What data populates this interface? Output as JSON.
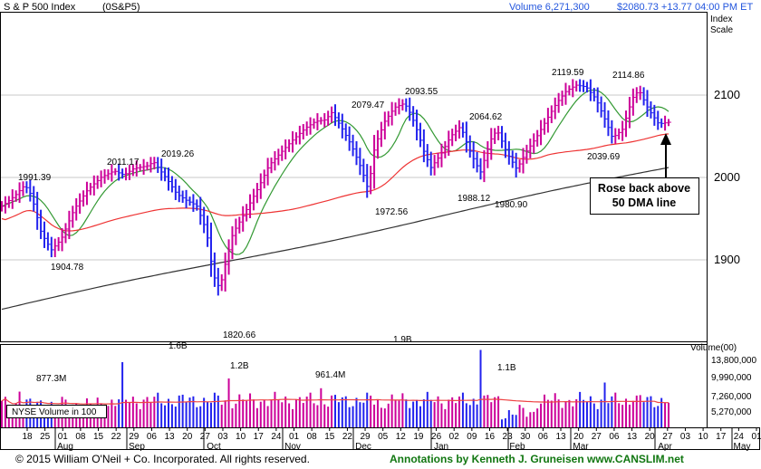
{
  "header": {
    "title": "S & P 500 Index",
    "symbol": "(0S&P5)",
    "volume": "Volume 6,271,300",
    "price": "$2080.73 +13.77",
    "time": "04:00 PM ET"
  },
  "index_scale": [
    "Index",
    "Scale"
  ],
  "price_axis": {
    "ticks": [
      "1900",
      "2000",
      "2100"
    ],
    "range": [
      1820,
      2135
    ]
  },
  "volume_axis": {
    "title": "Volume(00)",
    "ticks": [
      "5,270,000",
      "7,260,000",
      "9,990,000",
      "13,800,000"
    ]
  },
  "date_axis": {
    "days": [
      "18",
      "25",
      "01",
      "08",
      "15",
      "22",
      "29",
      "06",
      "13",
      "20",
      "27",
      "03",
      "10",
      "17",
      "24",
      "01",
      "08",
      "15",
      "22",
      "29",
      "05",
      "12",
      "19",
      "26",
      "02",
      "09",
      "16",
      "23",
      "30",
      "06",
      "13",
      "20",
      "27",
      "06",
      "13",
      "20",
      "27",
      "03",
      "10",
      "17",
      "24",
      "01"
    ],
    "months": [
      "Aug",
      "Sep",
      "Oct",
      "Nov",
      "Dec",
      "Jan",
      "Feb",
      "Mar",
      "Apr",
      "May"
    ]
  },
  "annotations": {
    "callout": [
      "Rose back above",
      "50 DMA line"
    ],
    "volume_box": "NYSE Volume in 100",
    "price_labels": [
      "1991.39",
      "1904.78",
      "2011.17",
      "2019.26",
      "1820.66",
      "2079.47",
      "1972.56",
      "2093.55",
      "2064.62",
      "1988.12",
      "1980.90",
      "2119.59",
      "2114.86",
      "2039.69"
    ],
    "volume_labels": [
      "877.3M",
      "1.6B",
      "1.2B",
      "961.4M",
      "1.9B",
      "1.1B"
    ]
  },
  "footer": {
    "copyright": "© 2015  William O'Neil + Co. Incorporated. All rights reserved.",
    "credit": "Annotations by Kenneth J. Gruneisen www.CANSLIM.net"
  },
  "colors": {
    "up": "#cc0099",
    "down": "#2222ee",
    "ma50": "#339933",
    "ma200": "#ee3333",
    "longma": "#333333",
    "volume_ma": "#ee4444",
    "header_blue": "#2255dd",
    "footer_green": "#117711"
  },
  "chart_data": {
    "type": "candlestick",
    "title": "S & P 500 Index",
    "key_points": [
      {
        "label": "1991.39",
        "date": "Jul 2014",
        "value": 1991.39
      },
      {
        "label": "1904.78",
        "date": "Aug 2014",
        "value": 1904.78
      },
      {
        "label": "2011.17",
        "date": "Sep 2014",
        "value": 2011.17
      },
      {
        "label": "2019.26",
        "date": "Sep 2014",
        "value": 2019.26
      },
      {
        "label": "1820.66",
        "date": "Oct 2014",
        "value": 1820.66
      },
      {
        "label": "2079.47",
        "date": "Nov 2014",
        "value": 2079.47
      },
      {
        "label": "1972.56",
        "date": "Dec 2014",
        "value": 1972.56
      },
      {
        "label": "2093.55",
        "date": "Dec 2014",
        "value": 2093.55
      },
      {
        "label": "2064.62",
        "date": "Jan 2015",
        "value": 2064.62
      },
      {
        "label": "1988.12",
        "date": "Jan 2015",
        "value": 1988.12
      },
      {
        "label": "1980.90",
        "date": "Feb 2015",
        "value": 1980.9
      },
      {
        "label": "2119.59",
        "date": "Mar 2015",
        "value": 2119.59
      },
      {
        "label": "2114.86",
        "date": "Mar 2015",
        "value": 2114.86
      },
      {
        "label": "2039.69",
        "date": "Mar 2015",
        "value": 2039.69
      }
    ],
    "volume_key_points": [
      {
        "label": "877.3M",
        "value": 877.3
      },
      {
        "label": "1.6B",
        "value": 1600
      },
      {
        "label": "1.2B",
        "value": 1200
      },
      {
        "label": "961.4M",
        "value": 961.4
      },
      {
        "label": "1.9B",
        "value": 1900
      },
      {
        "label": "1.1B",
        "value": 1100
      }
    ],
    "last_close": 2080.73,
    "change": 13.77
  }
}
